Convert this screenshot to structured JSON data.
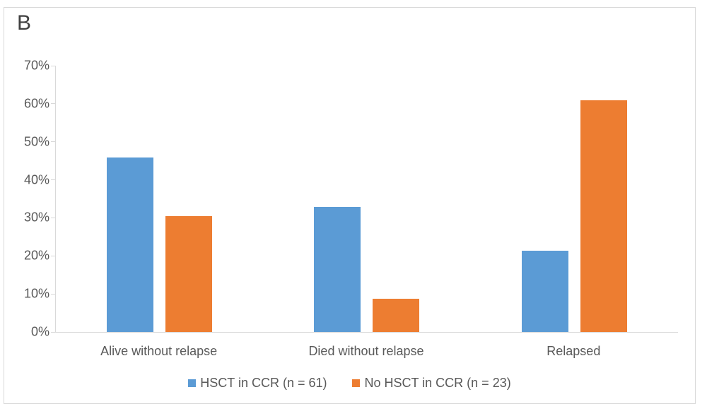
{
  "panel_label": "B",
  "colors": {
    "series_blue": "#5B9BD5",
    "series_orange": "#ED7D31",
    "axis_line": "#D9D9D9",
    "frame_border": "#D9D9D9",
    "text": "#595959",
    "background": "#FFFFFF"
  },
  "chart_data": {
    "type": "bar",
    "title": "",
    "xlabel": "",
    "ylabel": "",
    "categories": [
      "Alive without relapse",
      "Died without relapse",
      "Relapsed"
    ],
    "series": [
      {
        "name": "HSCT in CCR (n = 61)",
        "color": "#5B9BD5",
        "values": [
          45.9,
          32.8,
          21.3
        ]
      },
      {
        "name": "No HSCT in CCR (n = 23)",
        "color": "#ED7D31",
        "values": [
          30.4,
          8.7,
          60.9
        ]
      }
    ],
    "value_unit": "percent",
    "ylim": [
      0,
      70
    ],
    "ytick_step": 10,
    "ytick_labels": [
      "0%",
      "10%",
      "20%",
      "30%",
      "40%",
      "50%",
      "60%",
      "70%"
    ],
    "grid": false,
    "legend_position": "bottom"
  }
}
